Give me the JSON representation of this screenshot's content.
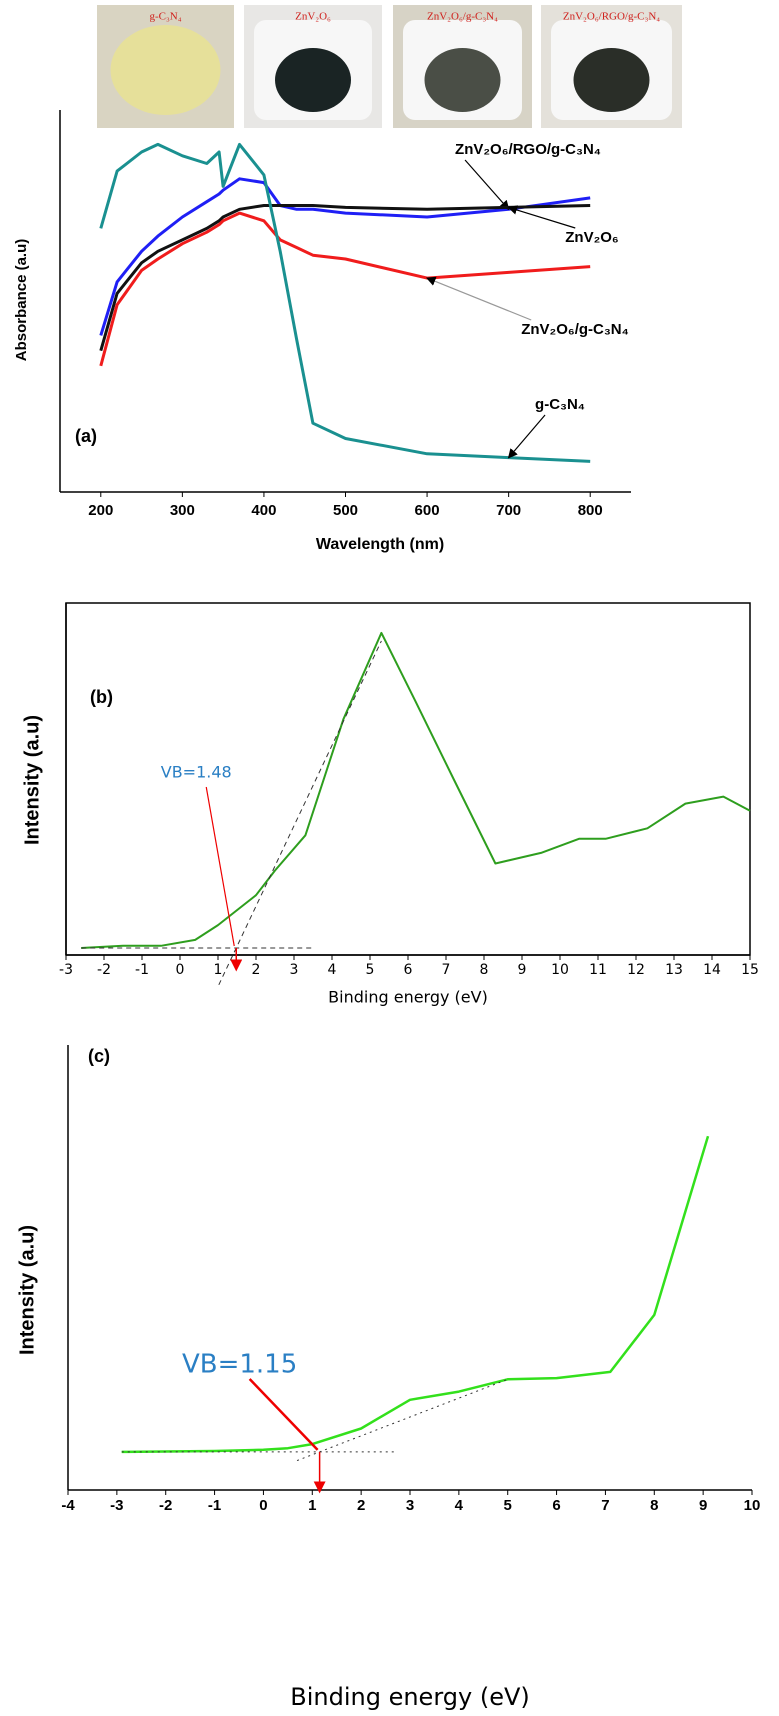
{
  "chart_data": [
    {
      "type": "line",
      "label": "(a)",
      "photo_labels": [
        "g-C₃N₄",
        "ZnV₂O₆",
        "ZnV₂O₆/g-C₃N₄",
        "ZnV₂O₆/RGO/g-C₃N₄"
      ],
      "x_label": "Wavelength (nm)",
      "y_label": "Absorbance (a.u)",
      "x": [
        200,
        220,
        250,
        270,
        300,
        330,
        345,
        350,
        370,
        400,
        420,
        440,
        460,
        500,
        600,
        700,
        800
      ],
      "series": [
        {
          "name": "ZnV₂O₆/RGO/g-C₃N₄",
          "color": "#1f1ff5",
          "values": [
            41,
            55,
            63,
            67,
            72,
            76,
            78,
            79,
            82,
            81,
            75,
            74,
            74,
            73,
            72,
            74,
            77
          ]
        },
        {
          "name": "ZnV₂O₆",
          "color": "#111111",
          "values": [
            37,
            52,
            60,
            63,
            66,
            69,
            71,
            72,
            74,
            75,
            75,
            75,
            75,
            74.5,
            74,
            74.5,
            75
          ]
        },
        {
          "name": "ZnV₂O₆/g-C₃N₄",
          "color": "#f01c1c",
          "values": [
            33,
            49,
            58,
            61,
            65,
            68,
            70,
            71,
            73,
            71,
            66,
            64,
            62,
            61,
            56,
            57.5,
            59
          ]
        },
        {
          "name": "g-C₃N₄",
          "color": "#1a9090",
          "values": [
            69,
            84,
            89,
            91,
            88,
            86,
            89,
            80,
            91,
            83,
            63,
            40,
            18,
            14,
            10,
            9,
            8
          ]
        }
      ],
      "xlim": [
        150,
        850
      ],
      "xticks": [
        200,
        300,
        400,
        500,
        600,
        700,
        800
      ],
      "ylim": [
        0,
        100
      ]
    },
    {
      "type": "line",
      "label": "(b)",
      "x_label": "Binding energy (eV)",
      "y_label": "Intensity (a.u)",
      "x": [
        -2.6,
        -1.5,
        -0.5,
        0.4,
        1,
        2,
        2.5,
        3.3,
        4.3,
        5.3,
        6.2,
        7.2,
        8.3,
        9.5,
        10.5,
        11.2,
        12.3,
        13.3,
        14.3,
        15
      ],
      "series": [
        {
          "color": "#2e9e1e",
          "values": [
            2,
            2.6,
            2.6,
            4.3,
            8.5,
            17,
            24,
            34,
            67,
            91.5,
            72,
            50,
            26,
            29,
            33,
            33,
            36,
            43,
            45,
            41
          ]
        }
      ],
      "xlim": [
        -3,
        15
      ],
      "xticks": [
        -3,
        -2,
        -1,
        0,
        1,
        2,
        3,
        4,
        5,
        6,
        7,
        8,
        9,
        10,
        11,
        12,
        13,
        14,
        15
      ],
      "ylim": [
        0,
        100
      ],
      "annotation": {
        "text": "VB=1.48",
        "x": 1.48
      }
    },
    {
      "type": "line",
      "label": "(c)",
      "x_label": "Binding energy (eV)",
      "y_label": "Intensity (a.u)",
      "x": [
        -2.9,
        -1,
        0,
        0.5,
        1,
        2,
        3,
        4,
        5,
        6,
        7.1,
        8,
        9.1
      ],
      "series": [
        {
          "color": "#33e01c",
          "values": [
            9.3,
            9.5,
            9.8,
            10.2,
            11.2,
            15,
            22,
            24,
            27,
            27.3,
            28.8,
            42.7,
            86.3
          ]
        }
      ],
      "xlim": [
        -4,
        10
      ],
      "xticks": [
        -4,
        -3,
        -2,
        -1,
        0,
        1,
        2,
        3,
        4,
        5,
        6,
        7,
        8,
        9,
        10
      ],
      "ylim": [
        0,
        100
      ],
      "annotation": {
        "text": "VB=1.15",
        "x": 1.15
      }
    }
  ]
}
